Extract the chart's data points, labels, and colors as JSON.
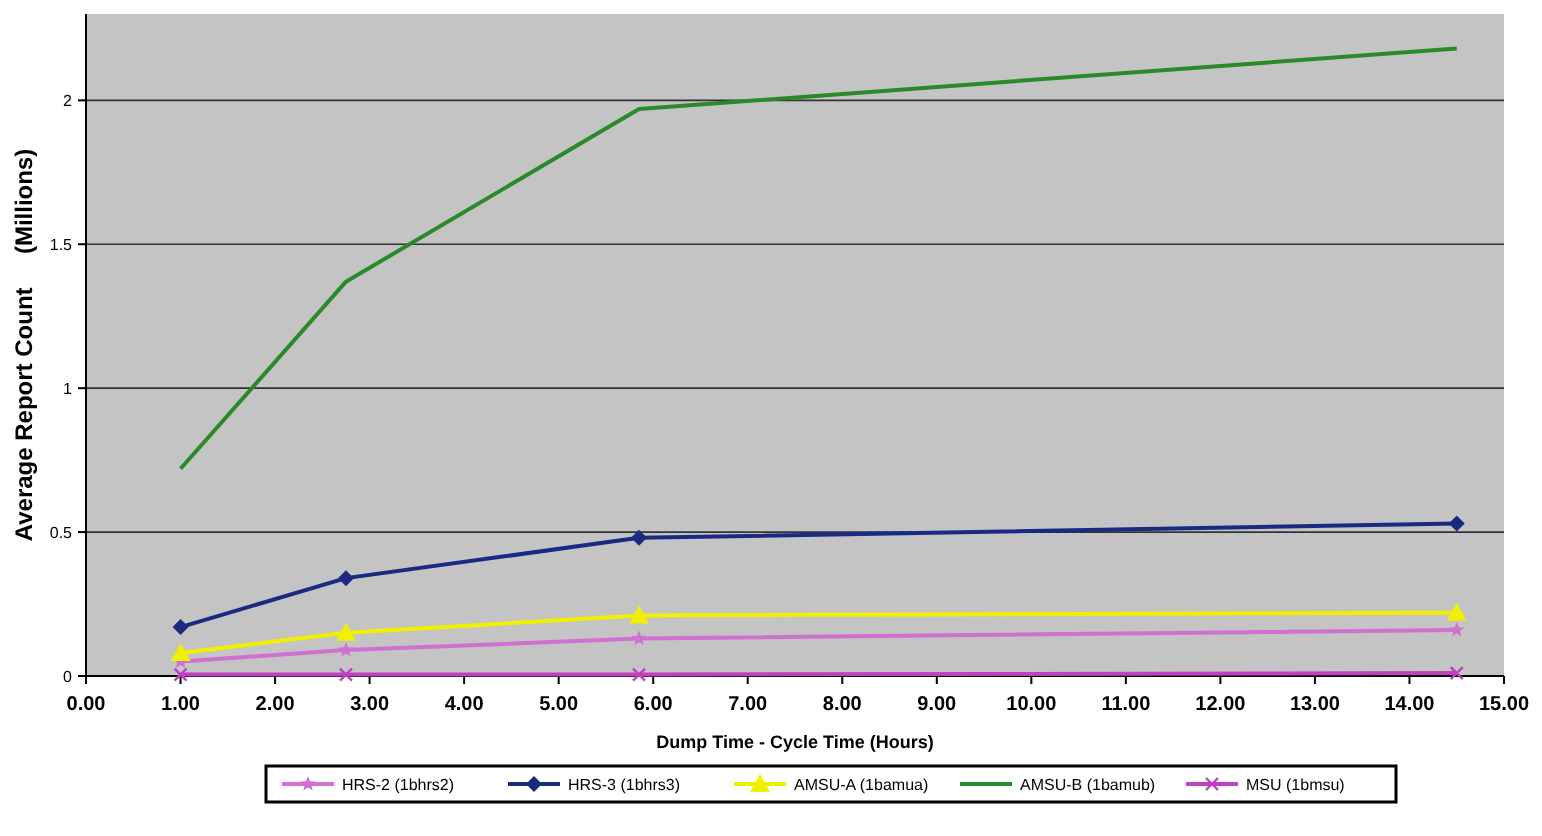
{
  "chart_data": {
    "type": "line",
    "xlabel": "Dump Time - Cycle Time (Hours)",
    "ylabel": "Average Report Count     (Millions)",
    "x": [
      1.0,
      2.75,
      5.85,
      14.5
    ],
    "xlim": [
      0,
      15
    ],
    "xticks": [
      {
        "value": 0,
        "label": "0.00"
      },
      {
        "value": 1,
        "label": "1.00"
      },
      {
        "value": 2,
        "label": "2.00"
      },
      {
        "value": 3,
        "label": "3.00"
      },
      {
        "value": 4,
        "label": "4.00"
      },
      {
        "value": 5,
        "label": "5.00"
      },
      {
        "value": 6,
        "label": "6.00"
      },
      {
        "value": 7,
        "label": "7.00"
      },
      {
        "value": 8,
        "label": "8.00"
      },
      {
        "value": 9,
        "label": "9.00"
      },
      {
        "value": 10,
        "label": "10.00"
      },
      {
        "value": 11,
        "label": "11.00"
      },
      {
        "value": 12,
        "label": "12.00"
      },
      {
        "value": 13,
        "label": "13.00"
      },
      {
        "value": 14,
        "label": "14.00"
      },
      {
        "value": 15,
        "label": "15.00"
      }
    ],
    "ylim": [
      0,
      2.3
    ],
    "yticks": [
      0,
      0.5,
      1,
      1.5,
      2
    ],
    "grid": "y",
    "legend": "bottom",
    "series": [
      {
        "name": "HRS-2 (1bhrs2)",
        "color": "#d070d0",
        "marker": "star",
        "values": [
          0.05,
          0.09,
          0.13,
          0.16
        ]
      },
      {
        "name": "HRS-3 (1bhrs3)",
        "color": "#1a2a80",
        "marker": "diamond",
        "values": [
          0.17,
          0.34,
          0.48,
          0.53
        ]
      },
      {
        "name": "AMSU-A (1bamua)",
        "color": "#f0f000",
        "marker": "triangle",
        "values": [
          0.08,
          0.15,
          0.21,
          0.22
        ]
      },
      {
        "name": "AMSU-B (1bamub)",
        "color": "#2a8a2a",
        "marker": "none",
        "values": [
          0.72,
          1.37,
          1.97,
          2.18
        ]
      },
      {
        "name": "MSU (1bmsu)",
        "color": "#c040c0",
        "marker": "cross",
        "values": [
          0.005,
          0.005,
          0.005,
          0.01
        ]
      }
    ]
  }
}
